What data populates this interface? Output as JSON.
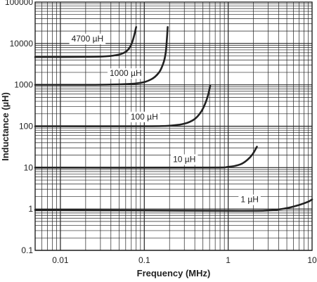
{
  "chart_data": {
    "type": "line",
    "title": "",
    "xlabel": "Frequency (MHz)",
    "ylabel": "Inductance (µH)",
    "x_scale": "log",
    "y_scale": "log",
    "xlim": [
      0.005,
      10
    ],
    "ylim": [
      0.1,
      100000
    ],
    "x_ticks": [
      {
        "value": 0.01,
        "label": "0.01"
      },
      {
        "value": 0.1,
        "label": "0.1"
      },
      {
        "value": 1,
        "label": "1"
      },
      {
        "value": 10,
        "label": "10"
      }
    ],
    "y_ticks": [
      {
        "value": 100000,
        "label": "100000"
      },
      {
        "value": 10000,
        "label": "10000"
      },
      {
        "value": 1000,
        "label": "1000"
      },
      {
        "value": 100,
        "label": "100"
      },
      {
        "value": 10,
        "label": "10"
      },
      {
        "value": 1,
        "label": "1"
      },
      {
        "value": 0.1,
        "label": "0.1"
      }
    ],
    "grid": true,
    "legend": "none",
    "series": [
      {
        "name": "4700 µH",
        "x": [
          0.005,
          0.02,
          0.035,
          0.05,
          0.06,
          0.067,
          0.072,
          0.076,
          0.08
        ],
        "y": [
          4700,
          4750,
          4900,
          5400,
          6300,
          8000,
          11000,
          16000,
          25000
        ]
      },
      {
        "name": "1000 µH",
        "x": [
          0.005,
          0.03,
          0.08,
          0.12,
          0.15,
          0.17,
          0.18,
          0.185,
          0.19
        ],
        "y": [
          1000,
          1005,
          1080,
          1350,
          2000,
          3500,
          6000,
          11000,
          25000
        ]
      },
      {
        "name": "100 µH",
        "x": [
          0.005,
          0.1,
          0.2,
          0.3,
          0.4,
          0.48,
          0.54,
          0.58,
          0.61
        ],
        "y": [
          100,
          100,
          103,
          115,
          150,
          230,
          380,
          600,
          950
        ]
      },
      {
        "name": "10 µH",
        "x": [
          0.005,
          0.5,
          1.0,
          1.4,
          1.7,
          1.95,
          2.2
        ],
        "y": [
          10,
          10,
          10.4,
          12,
          15.5,
          21,
          32
        ]
      },
      {
        "name": "1 µH",
        "x": [
          0.005,
          1,
          3,
          5,
          7,
          9,
          10
        ],
        "y": [
          0.95,
          0.9,
          0.92,
          1.05,
          1.25,
          1.5,
          1.7
        ]
      }
    ],
    "curve_labels": [
      {
        "text": "4700 µH",
        "x": 0.021,
        "y": 11200
      },
      {
        "text": "1000 µH",
        "x": 0.06,
        "y": 1630
      },
      {
        "text": "100 µH",
        "x": 0.1,
        "y": 146
      },
      {
        "text": "10 µH",
        "x": 0.3,
        "y": 13.6
      },
      {
        "text": "1 µH",
        "x": 1.8,
        "y": 1.45
      }
    ],
    "colors": {
      "curve": "#222222",
      "grid": "#222222",
      "frame": "#222222"
    }
  }
}
